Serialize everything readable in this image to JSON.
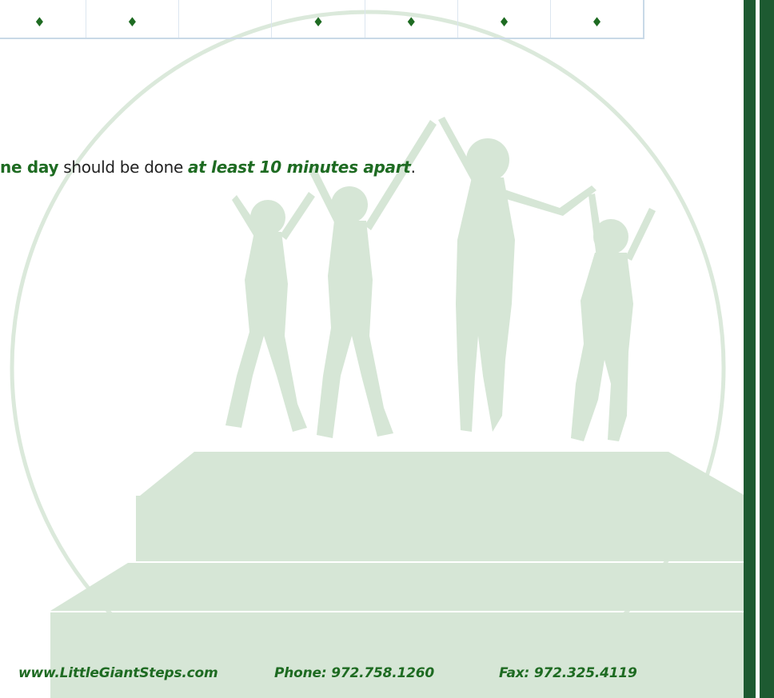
{
  "table": {
    "cells": [
      "♦",
      "♦",
      "",
      "♦",
      "♦",
      "♦",
      "♦"
    ]
  },
  "note": {
    "part1": "ne day",
    "part2": " should be done ",
    "part3": "at least 10 minutes apart",
    "part4": "."
  },
  "footer": {
    "website": "www.LittleGiantSteps.com",
    "phone": "Phone: 972.758.1260",
    "fax": "Fax: 972.325.4119"
  },
  "colors": {
    "brand_green": "#1e6b22",
    "sidebar_green": "#1d5a31",
    "watermark_green": "#d6e6d6"
  }
}
